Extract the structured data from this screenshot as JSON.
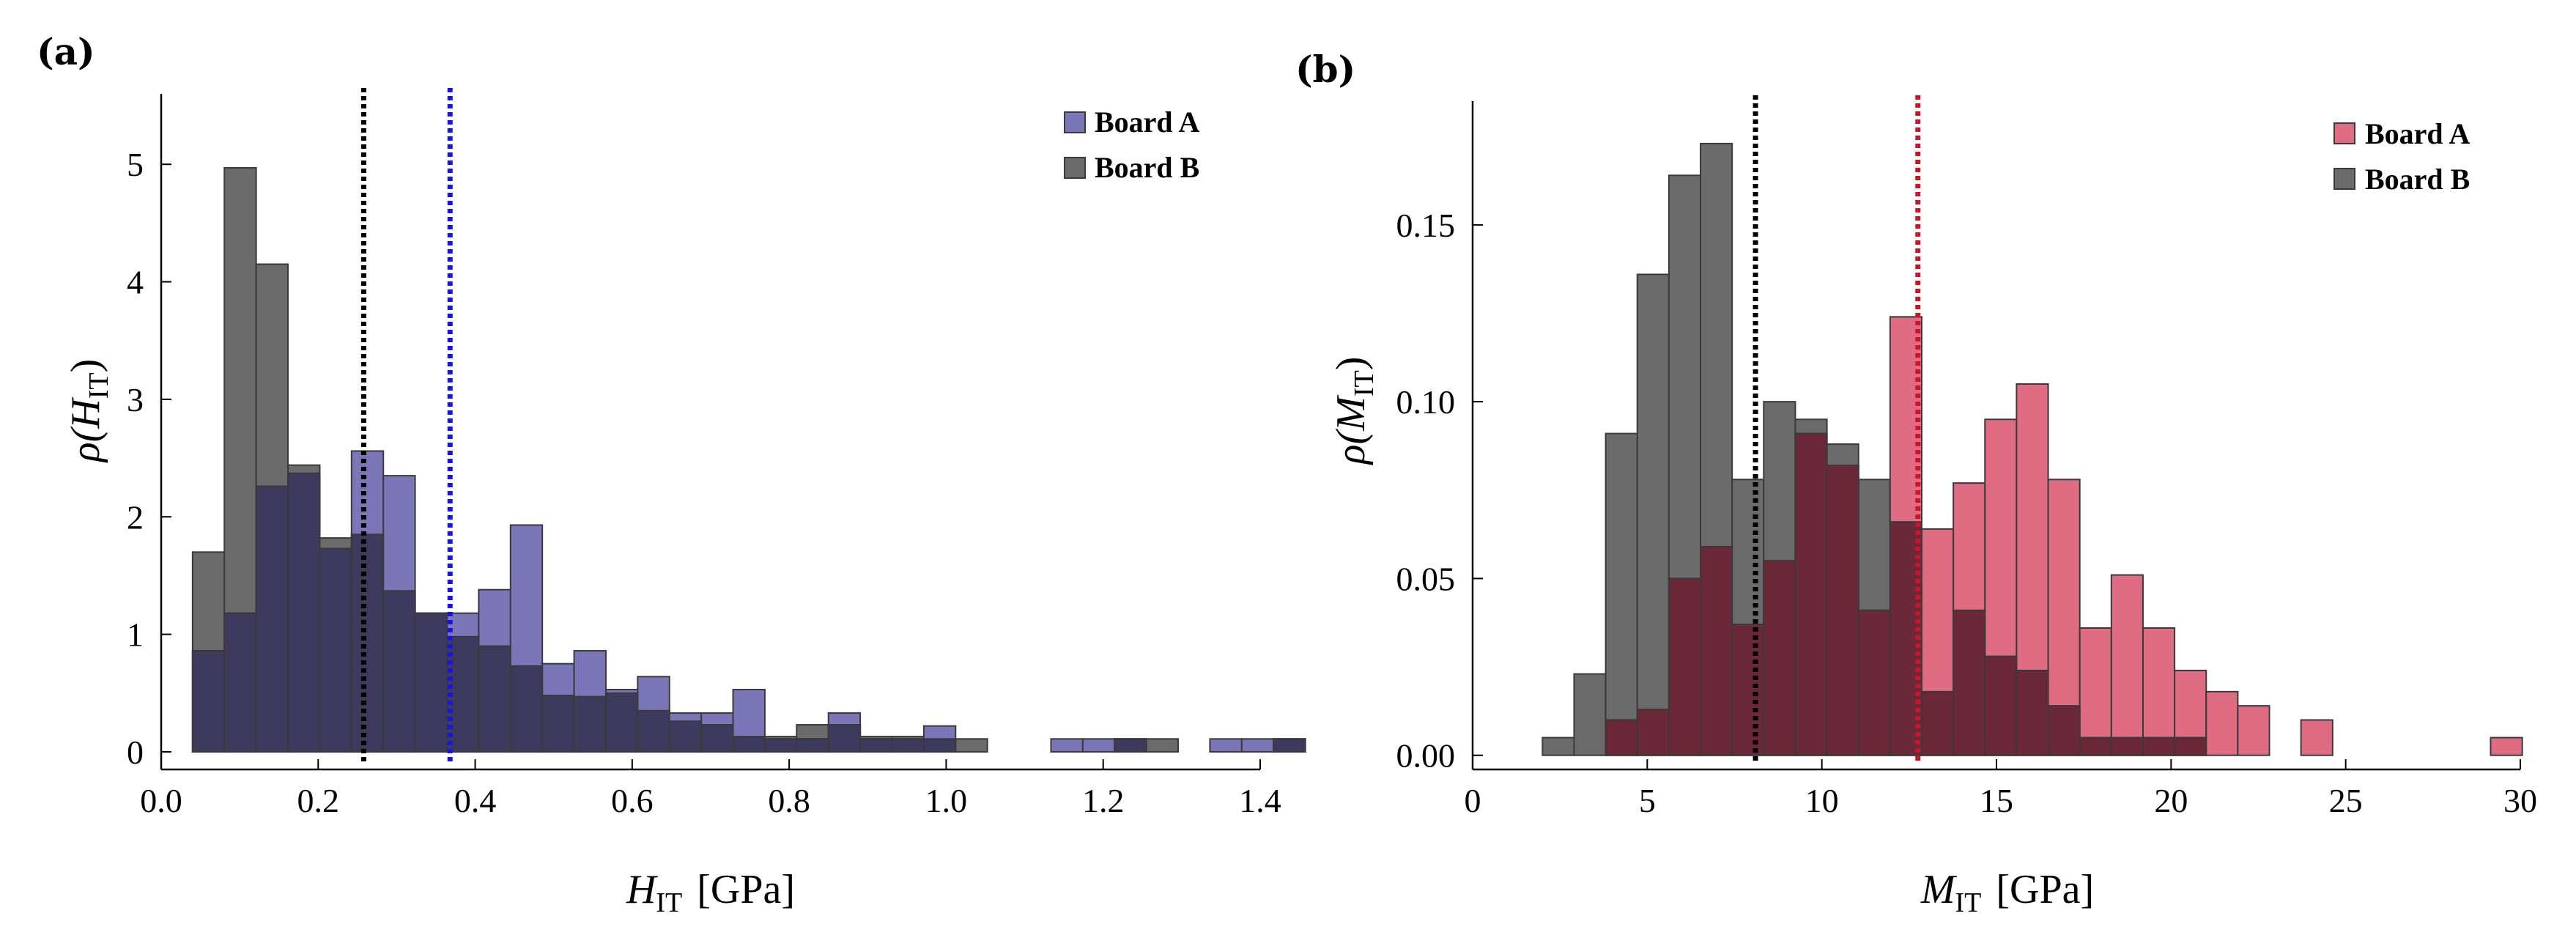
{
  "chart_data": [
    {
      "type": "bar",
      "panel_label": "(a)",
      "xlabel": {
        "main": "H",
        "sub": "IT",
        "unit": "[GPa]"
      },
      "ylabel": {
        "rho": "ρ(",
        "main": "H",
        "sub": "IT",
        "close": ")"
      },
      "xlim": [
        0.0,
        1.4
      ],
      "ylim": [
        -0.15,
        5.6
      ],
      "x_ticks": [
        "0.0",
        "0.2",
        "0.4",
        "0.6",
        "0.8",
        "1.0",
        "1.2",
        "1.4"
      ],
      "x_tick_values": [
        0.0,
        0.2,
        0.4,
        0.6,
        0.8,
        1.0,
        1.2,
        1.4
      ],
      "y_ticks": [
        "0",
        "1",
        "2",
        "3",
        "4",
        "5"
      ],
      "y_tick_values": [
        0,
        1,
        2,
        3,
        4,
        5
      ],
      "bin_start": 0.04,
      "bin_width": 0.0405,
      "series": [
        {
          "name": "Board B",
          "color": "#6b6b6b",
          "values": [
            1.7,
            4.97,
            4.15,
            2.44,
            1.82,
            1.85,
            1.37,
            1.18,
            0.98,
            0.9,
            0.73,
            0.48,
            0.47,
            0.5,
            0.35,
            0.26,
            0.23,
            0.13,
            0.13,
            0.23,
            0.23,
            0.13,
            0.13,
            0.11,
            0.11,
            0,
            0,
            0,
            0,
            0.11,
            0.11,
            0,
            0,
            0,
            0.11
          ]
        },
        {
          "name": "Board A",
          "color": "#7b76b8",
          "values": [
            0.86,
            1.18,
            2.26,
            2.37,
            1.73,
            2.56,
            2.35,
            1.18,
            1.18,
            1.38,
            1.93,
            0.75,
            0.86,
            0.53,
            0.64,
            0.33,
            0.33,
            0.53,
            0.11,
            0.11,
            0.33,
            0.11,
            0.11,
            0.22,
            0,
            0,
            0,
            0.11,
            0.11,
            0.11,
            0,
            0,
            0.11,
            0.11,
            0.11
          ]
        }
      ],
      "overlap_color": "#3d3a5e",
      "reference_lines": [
        {
          "x": 0.258,
          "color": "#000000"
        },
        {
          "x": 0.368,
          "color": "#1515e6"
        }
      ],
      "legend": {
        "position": "top-right",
        "labels": [
          "Board A",
          "Board B"
        ]
      }
    },
    {
      "type": "bar",
      "panel_label": "(b)",
      "xlabel": {
        "main": "M",
        "sub": "IT",
        "unit": "[GPa]"
      },
      "ylabel": {
        "rho": "ρ(",
        "main": "M",
        "sub": "IT",
        "close": ")"
      },
      "xlim": [
        0,
        30
      ],
      "ylim": [
        -0.004,
        0.185
      ],
      "x_ticks": [
        "0",
        "5",
        "10",
        "15",
        "20",
        "25",
        "30"
      ],
      "x_tick_values": [
        0,
        5,
        10,
        15,
        20,
        25,
        30
      ],
      "y_ticks": [
        "0.00",
        "0.05",
        "0.10",
        "0.15"
      ],
      "y_tick_values": [
        0.0,
        0.05,
        0.1,
        0.15
      ],
      "bin_start": 2.0,
      "bin_width": 0.905,
      "series": [
        {
          "name": "Board B",
          "color": "#6b6b6b",
          "values": [
            0.005,
            0.023,
            0.091,
            0.136,
            0.164,
            0.173,
            0.078,
            0.1,
            0.095,
            0.088,
            0.078,
            0.066,
            0.018,
            0.041,
            0.028,
            0.024,
            0.014,
            0.005,
            0.005,
            0.005,
            0.005,
            0,
            0,
            0,
            0,
            0,
            0,
            0,
            0,
            0,
            0
          ]
        },
        {
          "name": "Board A",
          "color": "#e06c84",
          "values": [
            0,
            0,
            0.01,
            0.013,
            0.05,
            0.059,
            0.037,
            0.055,
            0.091,
            0.082,
            0.041,
            0.124,
            0.064,
            0.077,
            0.095,
            0.105,
            0.078,
            0.036,
            0.051,
            0.036,
            0.024,
            0.018,
            0.014,
            0,
            0.01,
            0,
            0,
            0,
            0,
            0,
            0.005
          ]
        }
      ],
      "overlap_color": "#6b2838",
      "reference_lines": [
        {
          "x": 8.1,
          "color": "#000000"
        },
        {
          "x": 12.75,
          "color": "#cc1428"
        }
      ],
      "legend": {
        "position": "top-right",
        "labels": [
          "Board A",
          "Board B"
        ]
      }
    }
  ]
}
